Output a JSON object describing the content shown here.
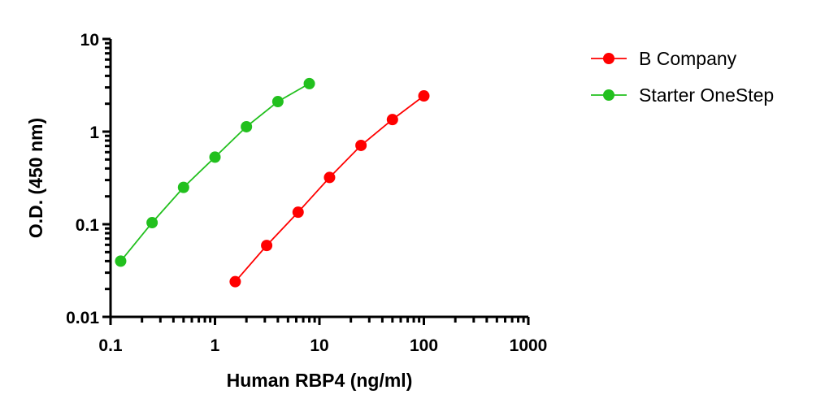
{
  "chart_data": {
    "type": "line",
    "title": "",
    "xlabel": "Human RBP4 (ng/ml)",
    "ylabel": "O.D. (450 nm)",
    "xscale": "log",
    "yscale": "log",
    "xlim": [
      0.1,
      1000
    ],
    "ylim": [
      0.01,
      10
    ],
    "xticks": [
      "0.1",
      "1",
      "10",
      "100",
      "1000"
    ],
    "yticks": [
      "0.01",
      "0.1",
      "1",
      "10"
    ],
    "grid": false,
    "legend_position": "right",
    "series": [
      {
        "name": "B Company",
        "color": "#ff0000",
        "marker": "circle",
        "x": [
          1.5625,
          3.125,
          6.25,
          12.5,
          25,
          50,
          100
        ],
        "y": [
          0.024,
          0.059,
          0.135,
          0.32,
          0.71,
          1.35,
          2.43
        ]
      },
      {
        "name": "Starter OneStep",
        "color": "#22c01e",
        "marker": "circle",
        "x": [
          0.125,
          0.25,
          0.5,
          1,
          2,
          4,
          8
        ],
        "y": [
          0.04,
          0.104,
          0.25,
          0.53,
          1.13,
          2.11,
          3.3
        ]
      }
    ]
  }
}
